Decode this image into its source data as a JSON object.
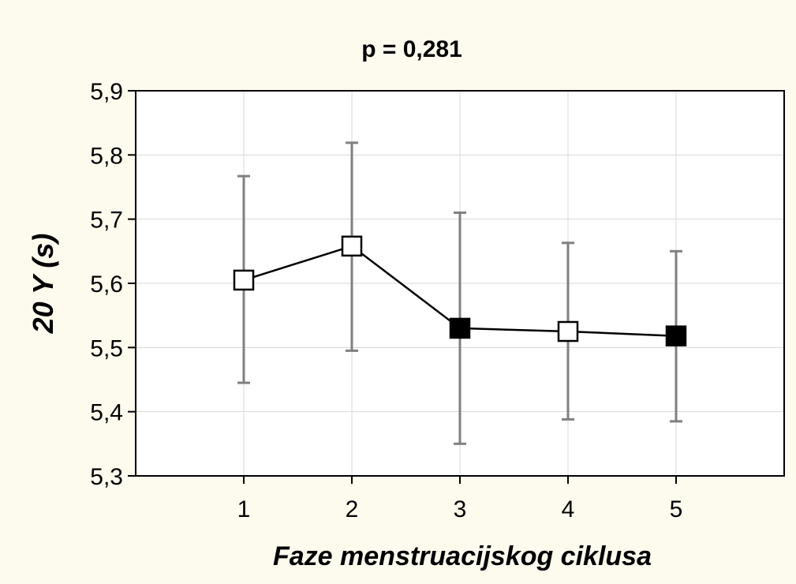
{
  "chart_data": {
    "type": "line",
    "title": "p = 0,281",
    "xlabel": "Faze menstruacijskog ciklusa",
    "ylabel": "20 Y (s)",
    "x": [
      1,
      2,
      3,
      4,
      5
    ],
    "xlim": [
      0,
      6
    ],
    "ylim": [
      5.3,
      5.9
    ],
    "x_ticks": [
      "1",
      "2",
      "3",
      "4",
      "5"
    ],
    "y_ticks": [
      "5,3",
      "5,4",
      "5,5",
      "5,6",
      "5,7",
      "5,8",
      "5,9"
    ],
    "grid": true,
    "series": [
      {
        "values": [
          5.605,
          5.658,
          5.53,
          5.525,
          5.518
        ],
        "error_low": [
          5.445,
          5.495,
          5.35,
          5.388,
          5.385
        ],
        "error_high": [
          5.767,
          5.819,
          5.71,
          5.663,
          5.65
        ],
        "marker_fill": [
          "open",
          "open",
          "filled",
          "open",
          "filled"
        ]
      }
    ],
    "colors": {
      "background": "#fdfbee",
      "plot_background": "#ffffff",
      "grid": "#d8d8d8",
      "error_bars": "#808080",
      "line": "#000000"
    }
  }
}
